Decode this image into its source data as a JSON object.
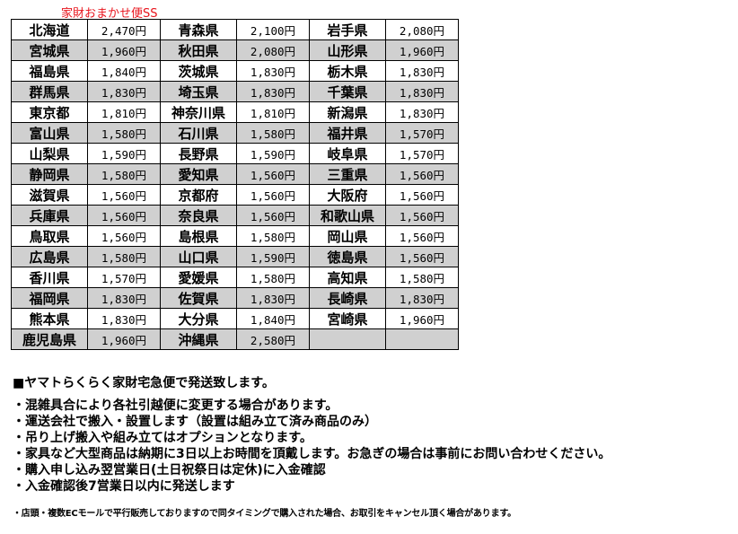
{
  "title": "家財おまかせ便SS",
  "rows": [
    [
      [
        "北海道",
        "2,470円"
      ],
      [
        "青森県",
        "2,100円"
      ],
      [
        "岩手県",
        "2,080円"
      ]
    ],
    [
      [
        "宮城県",
        "1,960円"
      ],
      [
        "秋田県",
        "2,080円"
      ],
      [
        "山形県",
        "1,960円"
      ]
    ],
    [
      [
        "福島県",
        "1,840円"
      ],
      [
        "茨城県",
        "1,830円"
      ],
      [
        "栃木県",
        "1,830円"
      ]
    ],
    [
      [
        "群馬県",
        "1,830円"
      ],
      [
        "埼玉県",
        "1,830円"
      ],
      [
        "千葉県",
        "1,830円"
      ]
    ],
    [
      [
        "東京都",
        "1,810円"
      ],
      [
        "神奈川県",
        "1,810円"
      ],
      [
        "新潟県",
        "1,830円"
      ]
    ],
    [
      [
        "富山県",
        "1,580円"
      ],
      [
        "石川県",
        "1,580円"
      ],
      [
        "福井県",
        "1,570円"
      ]
    ],
    [
      [
        "山梨県",
        "1,590円"
      ],
      [
        "長野県",
        "1,590円"
      ],
      [
        "岐阜県",
        "1,570円"
      ]
    ],
    [
      [
        "静岡県",
        "1,580円"
      ],
      [
        "愛知県",
        "1,560円"
      ],
      [
        "三重県",
        "1,560円"
      ]
    ],
    [
      [
        "滋賀県",
        "1,560円"
      ],
      [
        "京都府",
        "1,560円"
      ],
      [
        "大阪府",
        "1,560円"
      ]
    ],
    [
      [
        "兵庫県",
        "1,560円"
      ],
      [
        "奈良県",
        "1,560円"
      ],
      [
        "和歌山県",
        "1,560円"
      ]
    ],
    [
      [
        "鳥取県",
        "1,560円"
      ],
      [
        "島根県",
        "1,580円"
      ],
      [
        "岡山県",
        "1,560円"
      ]
    ],
    [
      [
        "広島県",
        "1,580円"
      ],
      [
        "山口県",
        "1,590円"
      ],
      [
        "徳島県",
        "1,560円"
      ]
    ],
    [
      [
        "香川県",
        "1,570円"
      ],
      [
        "愛媛県",
        "1,580円"
      ],
      [
        "高知県",
        "1,580円"
      ]
    ],
    [
      [
        "福岡県",
        "1,830円"
      ],
      [
        "佐賀県",
        "1,830円"
      ],
      [
        "長崎県",
        "1,830円"
      ]
    ],
    [
      [
        "熊本県",
        "1,830円"
      ],
      [
        "大分県",
        "1,840円"
      ],
      [
        "宮崎県",
        "1,960円"
      ]
    ],
    [
      [
        "鹿児島県",
        "1,960円"
      ],
      [
        "沖縄県",
        "2,580円"
      ],
      [
        "",
        ""
      ]
    ]
  ],
  "notes": {
    "heading": "■ヤマトらくらく家財宅急便で発送致します。",
    "bullets": [
      "・混雑具合により各社引越便に変更する場合があります。",
      "・運送会社で搬入・設置します（設置は組み立て済み商品のみ）",
      "・吊り上げ搬入や組み立てはオプションとなります。",
      "・家具など大型商品は納期に3日以上お時間を頂戴します。お急ぎの場合は事前にお問い合わせください。",
      "・購入申し込み翌営業日(土日祝祭日は定休)に入金確認",
      "・入金確認後7営業日以内に発送します"
    ],
    "footnote": "・店頭・複数ECモールで平行販売しておりますので同タイミングで購入された場合、お取引をキャンセル頂く場合があります。"
  }
}
